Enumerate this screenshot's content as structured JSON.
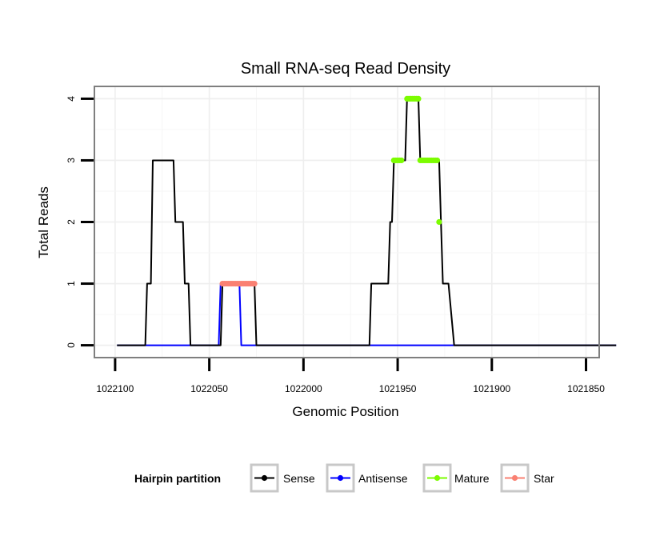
{
  "chart_data": {
    "type": "line",
    "title": "Small RNA-seq Read Density",
    "xlabel": "Genomic Position",
    "ylabel": "Total Reads",
    "x_reversed": true,
    "xlim": [
      1022111,
      1021843
    ],
    "ylim": [
      -0.2,
      4.2
    ],
    "x_ticks": [
      1022100,
      1022050,
      1022000,
      1021950,
      1021900,
      1021850
    ],
    "x_tick_labels": [
      "1022100",
      "1022050",
      "1022000",
      "1021950",
      "1021900",
      "1021850"
    ],
    "y_ticks": [
      0,
      1,
      2,
      3,
      4
    ],
    "y_tick_labels": [
      "0",
      "1",
      "2",
      "3",
      "4"
    ],
    "grid": true,
    "legend": {
      "title": "Hairpin partition",
      "position": "bottom",
      "entries": [
        {
          "label": "Sense",
          "color": "#000000"
        },
        {
          "label": "Antisense",
          "color": "#0000ff"
        },
        {
          "label": "Mature",
          "color": "#7cfc00"
        },
        {
          "label": "Star",
          "color": "#fa8072"
        }
      ]
    },
    "series": [
      {
        "name": "Sense",
        "color": "#000000",
        "style": "line",
        "points": [
          [
            1022099,
            0
          ],
          [
            1022084,
            0
          ],
          [
            1022083,
            1
          ],
          [
            1022081,
            1
          ],
          [
            1022080,
            3
          ],
          [
            1022069,
            3
          ],
          [
            1022068,
            2
          ],
          [
            1022064,
            2
          ],
          [
            1022063,
            1
          ],
          [
            1022061,
            1
          ],
          [
            1022060,
            0
          ],
          [
            1022044,
            0
          ],
          [
            1022043,
            1
          ],
          [
            1022026,
            1
          ],
          [
            1022025,
            0
          ],
          [
            1021965,
            0
          ],
          [
            1021964,
            1
          ],
          [
            1021955,
            1
          ],
          [
            1021954,
            2
          ],
          [
            1021953,
            2
          ],
          [
            1021952,
            3
          ],
          [
            1021946,
            3
          ],
          [
            1021945,
            4
          ],
          [
            1021939,
            4
          ],
          [
            1021938,
            3
          ],
          [
            1021928,
            3
          ],
          [
            1021927,
            2
          ],
          [
            1021926,
            1
          ],
          [
            1021923,
            1
          ],
          [
            1021920,
            0
          ],
          [
            1021834,
            0
          ]
        ]
      },
      {
        "name": "Antisense",
        "color": "#0000ff",
        "style": "line",
        "points": [
          [
            1022099,
            0
          ],
          [
            1022045,
            0
          ],
          [
            1022044,
            1
          ],
          [
            1022034,
            1
          ],
          [
            1022033,
            0
          ],
          [
            1021834,
            0
          ]
        ]
      },
      {
        "name": "Star",
        "color": "#fa8072",
        "style": "points",
        "points": [
          [
            1022043,
            1
          ],
          [
            1022042,
            1
          ],
          [
            1022041,
            1
          ],
          [
            1022040,
            1
          ],
          [
            1022039,
            1
          ],
          [
            1022038,
            1
          ],
          [
            1022037,
            1
          ],
          [
            1022036,
            1
          ],
          [
            1022035,
            1
          ],
          [
            1022034,
            1
          ],
          [
            1022033,
            1
          ],
          [
            1022032,
            1
          ],
          [
            1022031,
            1
          ],
          [
            1022030,
            1
          ],
          [
            1022029,
            1
          ],
          [
            1022028,
            1
          ],
          [
            1022027,
            1
          ],
          [
            1022026,
            1
          ]
        ]
      },
      {
        "name": "Mature",
        "color": "#7cfc00",
        "style": "points",
        "points": [
          [
            1021952,
            3
          ],
          [
            1021951,
            3
          ],
          [
            1021950,
            3
          ],
          [
            1021949,
            3
          ],
          [
            1021948,
            3
          ],
          [
            1021945,
            4
          ],
          [
            1021944,
            4
          ],
          [
            1021943,
            4
          ],
          [
            1021942,
            4
          ],
          [
            1021941,
            4
          ],
          [
            1021940,
            4
          ],
          [
            1021939,
            4
          ],
          [
            1021938,
            3
          ],
          [
            1021937,
            3
          ],
          [
            1021936,
            3
          ],
          [
            1021935,
            3
          ],
          [
            1021934,
            3
          ],
          [
            1021933,
            3
          ],
          [
            1021932,
            3
          ],
          [
            1021931,
            3
          ],
          [
            1021930,
            3
          ],
          [
            1021929,
            3
          ],
          [
            1021928,
            2
          ]
        ]
      }
    ]
  }
}
